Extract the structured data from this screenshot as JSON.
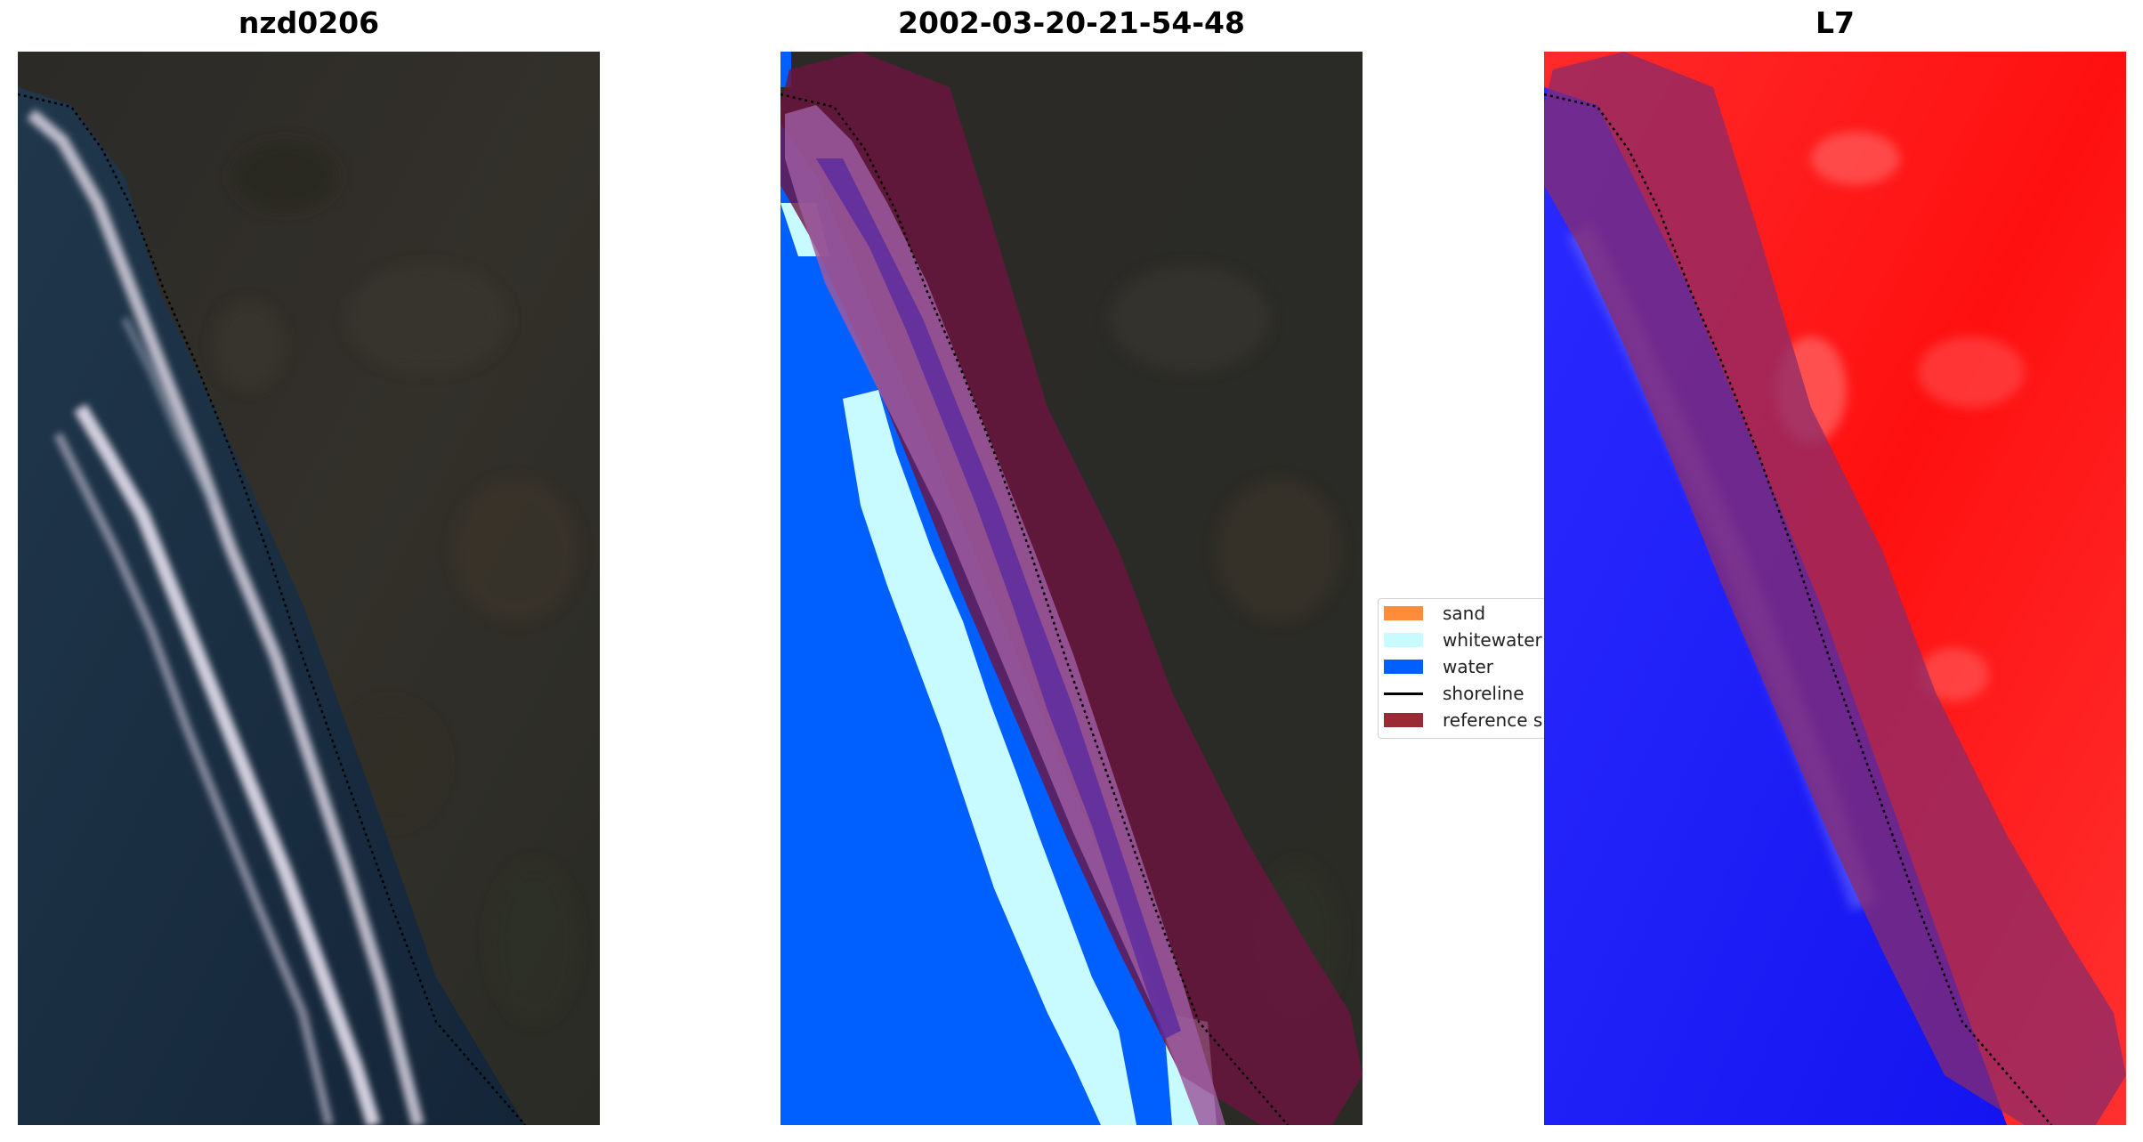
{
  "panels": [
    {
      "title": "nzd0206"
    },
    {
      "title": "2002-03-20-21-54-48"
    },
    {
      "title": "L7"
    }
  ],
  "legend": {
    "items": [
      {
        "label": "sand",
        "kind": "patch",
        "color": "#ff8c3a"
      },
      {
        "label": "whitewater",
        "kind": "patch",
        "color": "#c8fbff"
      },
      {
        "label": "water",
        "kind": "patch",
        "color": "#0060ff"
      },
      {
        "label": "shoreline",
        "kind": "line",
        "color": "#000000"
      },
      {
        "label": "reference sh",
        "kind": "patch",
        "color": "#9a2a34"
      }
    ]
  },
  "colors": {
    "ocean_dark": "#1b2d3f",
    "land_dark": "#2d2c27",
    "water_class": "#0060ff",
    "whitewater_class": "#c8fbff",
    "sand_overlay": "#9c5aa0",
    "reference_buffer": "#6e1440",
    "index_positive": "#ff1a1a",
    "index_negative": "#1a1aff",
    "index_buffer": "#8a2b6a"
  }
}
